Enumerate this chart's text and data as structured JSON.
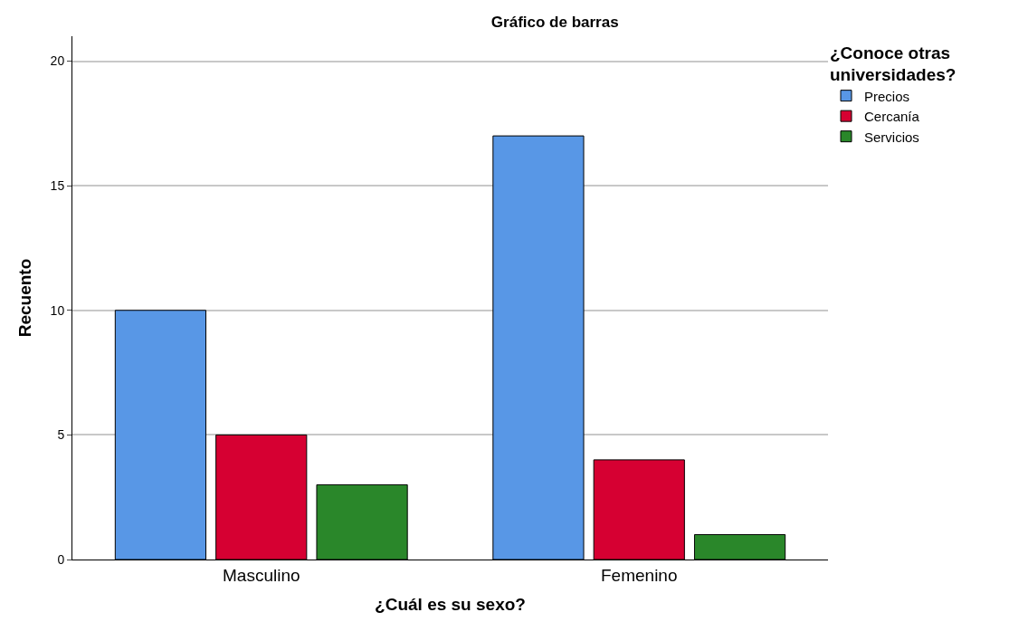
{
  "chart_data": {
    "type": "bar",
    "title": "Gráfico de barras",
    "xlabel": "¿Cuál es su sexo?",
    "ylabel": "Recuento",
    "legend_title": "¿Conoce otras universidades?",
    "categories": [
      "Masculino",
      "Femenino"
    ],
    "series": [
      {
        "name": "Precios",
        "color": "#5897e6",
        "values": [
          10,
          17
        ]
      },
      {
        "name": "Cercanía",
        "color": "#d60032",
        "values": [
          5,
          4
        ]
      },
      {
        "name": "Servicios",
        "color": "#2a872a",
        "values": [
          3,
          1
        ]
      }
    ],
    "ylim": [
      0,
      21
    ],
    "yticks": [
      0,
      5,
      10,
      15,
      20
    ],
    "grid": "y",
    "legend": "top right"
  }
}
